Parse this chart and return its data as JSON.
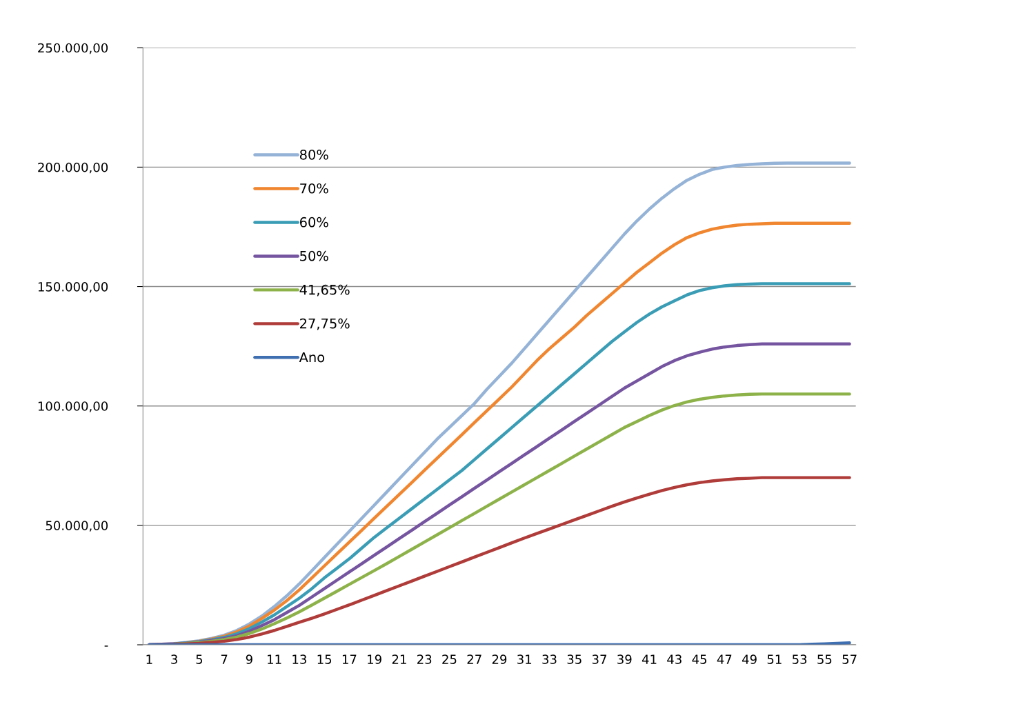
{
  "chart_data": {
    "type": "line",
    "categories": [
      "1",
      null,
      "3",
      null,
      "5",
      null,
      "7",
      null,
      "9",
      null,
      "11",
      null,
      "13",
      null,
      "15",
      null,
      "17",
      null,
      "19",
      null,
      "21",
      null,
      "23",
      null,
      "25",
      null,
      "27",
      null,
      "29",
      null,
      "31",
      null,
      "33",
      null,
      "35",
      null,
      "37",
      null,
      "39",
      null,
      "41",
      null,
      "43",
      null,
      "45",
      null,
      "47",
      null,
      "49",
      null,
      "51",
      null,
      "53",
      null,
      "55",
      null,
      "57"
    ],
    "series": [
      {
        "name": "80%",
        "color": "#95b3d7",
        "values": [
          0,
          200,
          500,
          1000,
          1700,
          2700,
          4000,
          6000,
          8700,
          12000,
          16000,
          20500,
          25500,
          31000,
          36500,
          42000,
          47500,
          53000,
          58500,
          64000,
          69500,
          75000,
          80500,
          86000,
          91000,
          96000,
          101000,
          107000,
          112500,
          118000,
          124000,
          130000,
          136000,
          142000,
          148000,
          154000,
          160000,
          166000,
          172000,
          177500,
          182500,
          187000,
          191000,
          194500,
          197000,
          199000,
          200000,
          200700,
          201100,
          201400,
          201600,
          201700,
          201700,
          201700,
          201700,
          201700,
          201700
        ]
      },
      {
        "name": "70%",
        "color": "#f0862f",
        "values": [
          null,
          null,
          null,
          900,
          1500,
          2400,
          3600,
          5400,
          7800,
          11000,
          14500,
          18500,
          23000,
          28000,
          33000,
          38000,
          43000,
          48000,
          53000,
          58000,
          63000,
          68000,
          73000,
          78000,
          83000,
          88000,
          93000,
          98000,
          103000,
          108000,
          113500,
          119000,
          124000,
          128500,
          133000,
          138000,
          142500,
          147000,
          151500,
          156000,
          160000,
          164000,
          167500,
          170500,
          172500,
          174000,
          175000,
          175700,
          176100,
          176300,
          176500,
          176500,
          176500,
          176500,
          176500,
          176500,
          176500
        ]
      },
      {
        "name": "60%",
        "color": "#3a9db5",
        "values": [
          null,
          null,
          400,
          800,
          1300,
          2100,
          3100,
          4600,
          6700,
          9500,
          12500,
          16000,
          19500,
          23500,
          28000,
          32000,
          36000,
          40500,
          45000,
          49000,
          53000,
          57000,
          61000,
          65000,
          69000,
          73000,
          77500,
          82000,
          86500,
          91000,
          95500,
          100000,
          104500,
          109000,
          113500,
          118000,
          122500,
          127000,
          131000,
          135000,
          138500,
          141500,
          144000,
          146500,
          148300,
          149500,
          150300,
          150800,
          151000,
          151200,
          151200,
          151200,
          151200,
          151200,
          151200,
          151200,
          151200
        ]
      },
      {
        "name": "50%",
        "color": "#7554a0",
        "values": [
          0,
          200,
          400,
          700,
          1100,
          1800,
          2600,
          3800,
          5600,
          8000,
          10500,
          13500,
          16500,
          20000,
          23500,
          27000,
          30500,
          34000,
          37500,
          41000,
          44500,
          48000,
          51500,
          55000,
          58500,
          62000,
          65500,
          69000,
          72500,
          76000,
          79500,
          83000,
          86500,
          90000,
          93500,
          97000,
          100500,
          104000,
          107500,
          110500,
          113500,
          116500,
          119000,
          121000,
          122500,
          123800,
          124700,
          125300,
          125700,
          126000,
          126000,
          126000,
          126000,
          126000,
          126000,
          126000,
          126000
        ]
      },
      {
        "name": "41,65%",
        "color": "#8db24a",
        "values": [
          null,
          null,
          300,
          600,
          900,
          1500,
          2200,
          3200,
          4700,
          6600,
          8800,
          11200,
          13800,
          16600,
          19500,
          22400,
          25300,
          28200,
          31100,
          34000,
          37000,
          40000,
          43000,
          46000,
          49000,
          52000,
          55000,
          58000,
          61000,
          64000,
          67000,
          70000,
          73000,
          76000,
          79000,
          82000,
          85000,
          88000,
          91000,
          93500,
          96000,
          98300,
          100200,
          101700,
          102800,
          103600,
          104200,
          104600,
          104900,
          105000,
          105000,
          105000,
          105000,
          105000,
          105000,
          105000,
          105000
        ]
      },
      {
        "name": "27,75%",
        "color": "#b03c3a",
        "values": [
          0,
          100,
          200,
          400,
          600,
          1000,
          1500,
          2200,
          3200,
          4500,
          6000,
          7700,
          9400,
          11100,
          12900,
          14800,
          16700,
          18700,
          20700,
          22700,
          24700,
          26700,
          28700,
          30700,
          32700,
          34700,
          36700,
          38700,
          40700,
          42700,
          44700,
          46600,
          48500,
          50400,
          52300,
          54200,
          56100,
          58000,
          59800,
          61500,
          63100,
          64600,
          65900,
          67000,
          67900,
          68600,
          69100,
          69500,
          69700,
          70000,
          70000,
          70000,
          70000,
          70000,
          70000,
          70000,
          70000
        ]
      },
      {
        "name": "Ano",
        "color": "#3f6fb0",
        "values": [
          0,
          0,
          0,
          0,
          0,
          0,
          0,
          0,
          0,
          0,
          0,
          0,
          0,
          0,
          0,
          0,
          0,
          0,
          0,
          0,
          0,
          0,
          0,
          0,
          0,
          0,
          0,
          0,
          0,
          0,
          0,
          0,
          0,
          0,
          0,
          0,
          0,
          0,
          0,
          0,
          0,
          0,
          0,
          0,
          0,
          0,
          0,
          0,
          0,
          0,
          0,
          0,
          0,
          200,
          400,
          600,
          800
        ]
      }
    ],
    "ylim": [
      0,
      250000
    ],
    "yticks": [
      {
        "value": 0,
        "label": "-"
      },
      {
        "value": 50000,
        "label": "50.000,00"
      },
      {
        "value": 100000,
        "label": "100.000,00"
      },
      {
        "value": 150000,
        "label": "150.000,00"
      },
      {
        "value": 200000,
        "label": "200.000,00"
      },
      {
        "value": 250000,
        "label": "250.000,00"
      }
    ],
    "grid": "y",
    "legend": "top left",
    "marker": "none",
    "line_style": "solid"
  }
}
